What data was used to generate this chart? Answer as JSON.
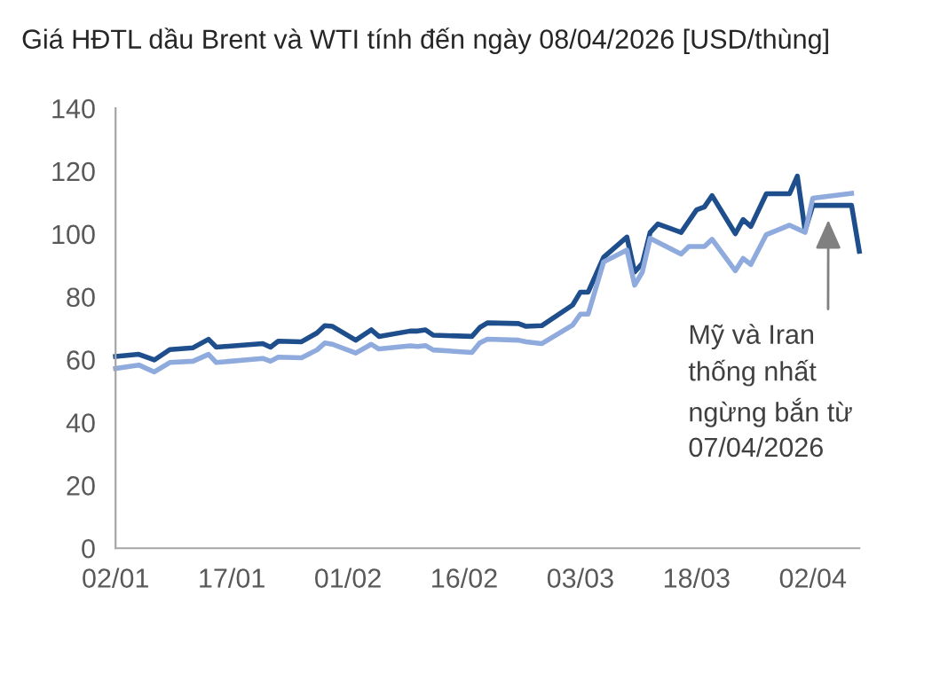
{
  "chart_data": {
    "type": "line",
    "title": "Giá HĐTL dầu Brent và WTI tính đến ngày 08/04/2026 [USD/thùng]",
    "series": [
      {
        "color": "#1f4e8c",
        "x": [
          "2026-01-02",
          "2026-01-05",
          "2026-01-07",
          "2026-01-09",
          "2026-01-12",
          "2026-01-14",
          "2026-01-15",
          "2026-01-21",
          "2026-01-22",
          "2026-01-23",
          "2026-01-26",
          "2026-01-28",
          "2026-01-29",
          "2026-01-30",
          "2026-02-02",
          "2026-02-04",
          "2026-02-05",
          "2026-02-09",
          "2026-02-10",
          "2026-02-11",
          "2026-02-12",
          "2026-02-17",
          "2026-02-18",
          "2026-02-19",
          "2026-02-23",
          "2026-02-24",
          "2026-02-26",
          "2026-03-02",
          "2026-03-03",
          "2026-03-04",
          "2026-03-06",
          "2026-03-09",
          "2026-03-10",
          "2026-03-11",
          "2026-03-12",
          "2026-03-13",
          "2026-03-16",
          "2026-03-18",
          "2026-03-19",
          "2026-03-20",
          "2026-03-23",
          "2026-03-24",
          "2026-03-25",
          "2026-03-27",
          "2026-03-30",
          "2026-03-31",
          "2026-04-01",
          "2026-04-02",
          "2026-04-07",
          "2026-04-08"
        ],
        "values": [
          61.0,
          61.7,
          59.9,
          63.2,
          63.8,
          66.5,
          64.0,
          65.1,
          64.0,
          65.9,
          65.7,
          68.5,
          70.8,
          70.6,
          66.2,
          69.5,
          67.4,
          69.1,
          69.1,
          69.5,
          67.8,
          67.4,
          70.2,
          71.7,
          71.5,
          70.6,
          70.8,
          77.4,
          81.5,
          81.5,
          92.6,
          99.0,
          87.9,
          90.7,
          100.5,
          103.2,
          100.5,
          107.7,
          108.6,
          112.2,
          100.1,
          104.6,
          102.4,
          112.8,
          112.8,
          118.4,
          101.1,
          109.1,
          109.1,
          94.5
        ]
      },
      {
        "color": "#8faadc",
        "x": [
          "2026-01-02",
          "2026-01-05",
          "2026-01-07",
          "2026-01-09",
          "2026-01-12",
          "2026-01-14",
          "2026-01-15",
          "2026-01-21",
          "2026-01-22",
          "2026-01-23",
          "2026-01-26",
          "2026-01-28",
          "2026-01-29",
          "2026-01-30",
          "2026-02-02",
          "2026-02-04",
          "2026-02-05",
          "2026-02-09",
          "2026-02-10",
          "2026-02-11",
          "2026-02-12",
          "2026-02-17",
          "2026-02-18",
          "2026-02-19",
          "2026-02-23",
          "2026-02-24",
          "2026-02-26",
          "2026-03-02",
          "2026-03-03",
          "2026-03-04",
          "2026-03-06",
          "2026-03-09",
          "2026-03-10",
          "2026-03-11",
          "2026-03-12",
          "2026-03-16",
          "2026-03-17",
          "2026-03-19",
          "2026-03-20",
          "2026-03-23",
          "2026-03-24",
          "2026-03-25",
          "2026-03-27",
          "2026-03-30",
          "2026-04-01",
          "2026-04-02",
          "2026-04-07"
        ],
        "values": [
          57.2,
          58.3,
          56.1,
          59.1,
          59.5,
          61.7,
          59.1,
          60.4,
          59.5,
          60.8,
          60.6,
          63.1,
          65.3,
          64.9,
          62.1,
          64.9,
          63.4,
          64.4,
          64.2,
          64.5,
          63.1,
          62.3,
          65.3,
          66.5,
          66.2,
          65.7,
          65.1,
          71.0,
          74.5,
          74.5,
          91.1,
          94.9,
          83.7,
          87.9,
          98.6,
          93.6,
          96.0,
          96.0,
          98.3,
          88.3,
          92.2,
          90.3,
          99.8,
          102.8,
          100.5,
          111.4,
          112.9
        ]
      }
    ],
    "xlim": [
      "2026-01-02",
      "2026-04-08"
    ],
    "xticks": [
      {
        "value": "2026-01-02",
        "label": "02/01"
      },
      {
        "value": "2026-01-17",
        "label": "17/01"
      },
      {
        "value": "2026-02-01",
        "label": "01/02"
      },
      {
        "value": "2026-02-16",
        "label": "16/02"
      },
      {
        "value": "2026-03-03",
        "label": "03/03"
      },
      {
        "value": "2026-03-18",
        "label": "18/03"
      },
      {
        "value": "2026-04-02",
        "label": "02/04"
      }
    ],
    "ylim": [
      0,
      140
    ],
    "yticks": [
      0,
      20,
      40,
      60,
      80,
      100,
      120,
      140
    ],
    "grid": false,
    "legend": false,
    "marker": "none",
    "line_style": "solid",
    "annotations": [
      {
        "text": "Mỹ và Iran\nthống nhất\nngừng bắn từ\n07/04/2026",
        "x": "2026-04-04",
        "y": 106
      }
    ]
  }
}
